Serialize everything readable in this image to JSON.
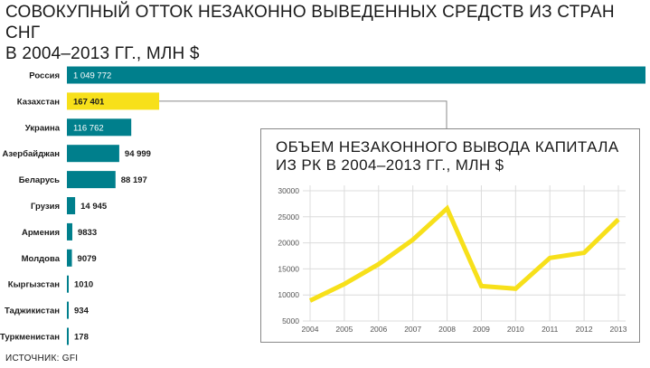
{
  "title_line1": "СОВОКУПНЫЙ ОТТОК НЕЗАКОННО ВЫВЕДЕННЫХ СРЕДСТВ ИЗ СТРАН СНГ",
  "title_line2": "В 2004–2013 ГГ., МЛН $",
  "source": "ИСТОЧНИК: GFI",
  "colors": {
    "bar": "#007f8c",
    "highlight": "#f7e01a",
    "line": "#f7e01a",
    "grid": "#dcdcdc",
    "connector": "#8a8a8a"
  },
  "chart_data": [
    {
      "type": "bar",
      "orientation": "horizontal",
      "title": "СОВОКУПНЫЙ ОТТОК НЕЗАКОННО ВЫВЕДЕННЫХ СРЕДСТВ ИЗ СТРАН СНГ В 2004–2013 ГГ., МЛН $",
      "categories": [
        "Россия",
        "Казахстан",
        "Украина",
        "Азербайджан",
        "Беларусь",
        "Грузия",
        "Армения",
        "Молдова",
        "Кыргызстан",
        "Таджикистан",
        "Туркменистан"
      ],
      "values": [
        1049772,
        167401,
        116762,
        94999,
        88197,
        14945,
        9833,
        9079,
        1010,
        934,
        178
      ],
      "labels": [
        "1 049 772",
        "167 401",
        "116 762",
        "94 999",
        "88 197",
        "14 945",
        "9833",
        "9079",
        "1010",
        "934",
        "178"
      ],
      "highlight": "Казахстан"
    },
    {
      "type": "line",
      "title_line1": "ОБЪЕМ НЕЗАКОННОГО ВЫВОДА КАПИТАЛА",
      "title_line2": "ИЗ РК В 2004–2013 ГГ., МЛН $",
      "x": [
        "2004",
        "2005",
        "2006",
        "2007",
        "2008",
        "2009",
        "2010",
        "2011",
        "2012",
        "2013"
      ],
      "values": [
        8900,
        12100,
        15900,
        20600,
        26600,
        11700,
        11200,
        17100,
        18100,
        24500
      ],
      "yticks": [
        "5000",
        "10000",
        "15000",
        "20000",
        "25000",
        "30000"
      ],
      "ylim": [
        5000,
        30000
      ],
      "grid": true
    }
  ]
}
